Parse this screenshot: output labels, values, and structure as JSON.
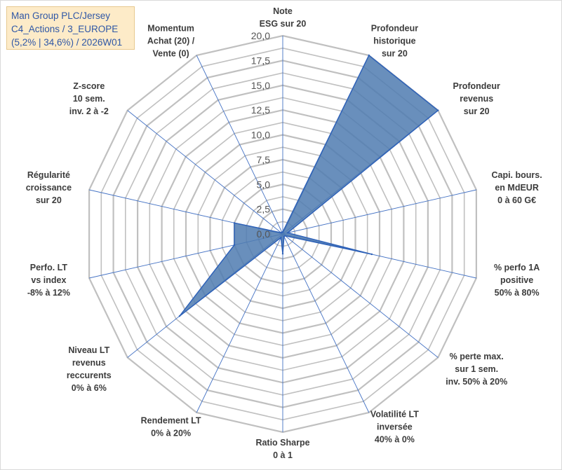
{
  "title": {
    "line1": "Man Group PLC/Jersey",
    "line2": "C4_Actions / 3_EUROPE",
    "line3": "(5,2% | 34,6%) / 2026W01"
  },
  "chart_data": {
    "type": "radar",
    "title": "Man Group PLC/Jersey C4_Actions / 3_EUROPE (5,2% | 34,6%) / 2026W01",
    "rlim": [
      0,
      20
    ],
    "ticks": [
      "0,0",
      "2,5",
      "5,0",
      "7,5",
      "10,0",
      "12,5",
      "15,0",
      "17,5",
      "20,0"
    ],
    "tick_values": [
      0,
      2.5,
      5,
      7.5,
      10,
      12.5,
      15,
      17.5,
      20
    ],
    "grid": true,
    "axes": [
      {
        "label": [
          "Note",
          "ESG sur 20"
        ],
        "value": 0.2
      },
      {
        "label": [
          "Profondeur",
          "historique",
          "sur 20"
        ],
        "value": 20
      },
      {
        "label": [
          "Profondeur",
          "revenus",
          "sur 20"
        ],
        "value": 20
      },
      {
        "label": [
          "Capi. bours.",
          "en MdEUR",
          "0 à 60 G€"
        ],
        "value": 0.5
      },
      {
        "label": [
          "% perfo 1A",
          "positive",
          "50% à 80%"
        ],
        "value": 9.2
      },
      {
        "label": [
          "% perte max.",
          "sur 1 sem.",
          "inv. 50% à 20%"
        ],
        "value": 0.3
      },
      {
        "label": [
          "Volatilité LT",
          "inversée",
          "40% à 0%"
        ],
        "value": 0.3
      },
      {
        "label": [
          "Ratio Sharpe",
          "0 à 1"
        ],
        "value": 2.0
      },
      {
        "label": [
          "Rendement LT",
          "0% à 20%"
        ],
        "value": 0.4
      },
      {
        "label": [
          "Niveau LT",
          "revenus",
          "reccurents",
          "0% à 6%"
        ],
        "value": 13.3
      },
      {
        "label": [
          "Perfo. LT",
          "vs index",
          "-8% à 12%"
        ],
        "value": 5.0
      },
      {
        "label": [
          "Régularité",
          "croissance",
          "sur 20"
        ],
        "value": 5.0
      },
      {
        "label": [
          "Z-score",
          "10 sem.",
          "inv. 2 à -2"
        ],
        "value": 0.2
      },
      {
        "label": [
          "Momentum",
          "Achat (20) /",
          "Vente (0)"
        ],
        "value": 0.2
      }
    ],
    "colors": {
      "fill": "#4f7bb0",
      "stroke": "#2f62b8",
      "grid": "#c0c0c0",
      "spoke": "#4472c4"
    }
  }
}
